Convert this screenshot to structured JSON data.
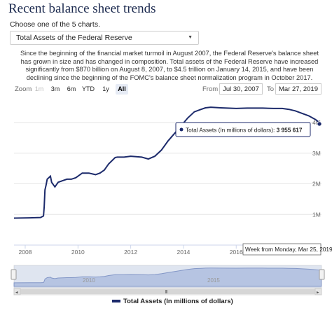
{
  "page": {
    "title": "Recent balance sheet trends",
    "instruction": "Choose one of the 5 charts.",
    "selected_chart": "Total Assets of the Federal Reserve",
    "description": "Since the beginning of the financial market turmoil in August 2007, the Federal Reserve's balance sheet has grown in size and has changed in composition. Total assets of the Federal Reserve have increased significantly from $870 billion on August 8, 2007, to $4.5 trillion on January 14, 2015, and have been declining since the beginning of the FOMC's balance sheet normalization program in October 2017."
  },
  "zoom": {
    "label": "Zoom",
    "buttons": [
      "1m",
      "3m",
      "6m",
      "YTD",
      "1y",
      "All"
    ],
    "active": "All",
    "disabled": [
      "1m"
    ]
  },
  "range": {
    "from_label": "From",
    "from_value": "Jul 30, 2007",
    "to_label": "To",
    "to_value": "Mar 27, 2019"
  },
  "tooltip": {
    "series": "Total Assets (In millions of dollars): ",
    "value": "3 955 617",
    "date_label": "Week from Monday, Mar 25, 2019"
  },
  "navigator": {
    "labels": [
      "2010",
      "2015"
    ]
  },
  "legend": {
    "label": "Total Assets (In millions of dollars)"
  },
  "colors": {
    "series": "#1c2a6b",
    "navigator_fill": "#c9d2ea",
    "title": "#1c2a4f"
  },
  "chart_data": {
    "type": "line",
    "title": "",
    "xlabel": "",
    "ylabel": "",
    "x_ticks": [
      "2008",
      "2010",
      "2012",
      "2014",
      "2016"
    ],
    "y_ticks": [
      "1M",
      "2M",
      "3M",
      "4M"
    ],
    "xlim": [
      "2007-07-30",
      "2019-03-27"
    ],
    "ylim": [
      0,
      4800000
    ],
    "grid": true,
    "legend_position": "bottom",
    "series": [
      {
        "name": "Total Assets (In millions of dollars)",
        "x": [
          "2007-07-30",
          "2008-03-01",
          "2008-08-01",
          "2008-09-10",
          "2008-09-20",
          "2008-10-01",
          "2008-10-15",
          "2008-11-01",
          "2008-12-15",
          "2009-01-01",
          "2009-02-15",
          "2009-04-01",
          "2009-06-01",
          "2009-08-01",
          "2009-10-01",
          "2009-12-01",
          "2010-03-01",
          "2010-06-01",
          "2010-09-01",
          "2010-11-01",
          "2011-01-01",
          "2011-03-01",
          "2011-06-01",
          "2011-07-01",
          "2011-10-01",
          "2012-01-01",
          "2012-06-01",
          "2012-09-01",
          "2012-12-01",
          "2013-03-01",
          "2013-06-01",
          "2013-09-01",
          "2013-12-01",
          "2014-03-01",
          "2014-06-01",
          "2014-09-01",
          "2014-11-01",
          "2015-01-14",
          "2015-06-01",
          "2016-01-01",
          "2016-06-01",
          "2017-01-01",
          "2017-06-01",
          "2017-10-01",
          "2018-01-01",
          "2018-04-01",
          "2018-07-01",
          "2018-10-01",
          "2019-01-01",
          "2019-03-25"
        ],
        "values": [
          880000,
          890000,
          900000,
          950000,
          1250000,
          1800000,
          1950000,
          2150000,
          2250000,
          2050000,
          1900000,
          2050000,
          2100000,
          2150000,
          2150000,
          2200000,
          2350000,
          2350000,
          2300000,
          2350000,
          2450000,
          2650000,
          2860000,
          2870000,
          2870000,
          2900000,
          2870000,
          2810000,
          2900000,
          3100000,
          3400000,
          3650000,
          3900000,
          4150000,
          4350000,
          4430000,
          4480000,
          4500000,
          4480000,
          4460000,
          4470000,
          4470000,
          4460000,
          4460000,
          4430000,
          4380000,
          4300000,
          4220000,
          4100000,
          3955617
        ]
      }
    ]
  }
}
